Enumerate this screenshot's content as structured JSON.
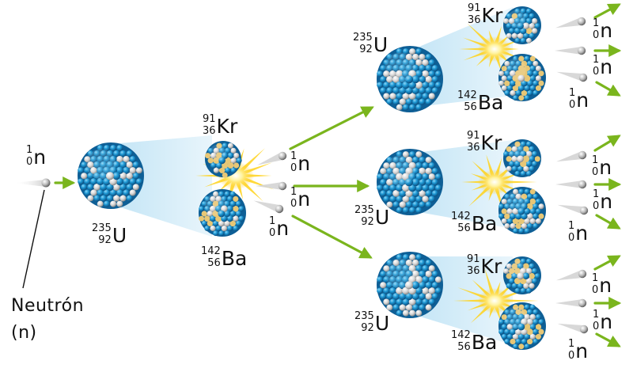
{
  "labels": {
    "neutron": {
      "mass": "1",
      "atomic": "0",
      "symbol": "n"
    },
    "uranium": {
      "mass": "235",
      "atomic": "92",
      "symbol": "U"
    },
    "krypton": {
      "mass": "91",
      "atomic": "36",
      "symbol": "Kr"
    },
    "barium": {
      "mass": "142",
      "atomic": "56",
      "symbol": "Ba"
    },
    "caption_line1": "Neutrón",
    "caption_line2": "(n)"
  },
  "colors": {
    "arrow": "#7ab51d",
    "nucleon_blue": "#1e9bd7",
    "nucleon_white": "#e6e6e6",
    "glow": "#cde9f6",
    "flash": "#ffd21a"
  }
}
